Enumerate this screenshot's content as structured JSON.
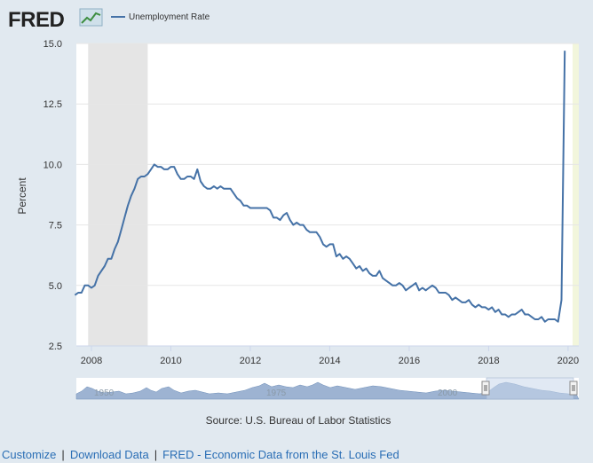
{
  "header": {
    "logo_text": "FRED",
    "legend_label": "Unemployment Rate"
  },
  "source_text": "Source: U.S. Bureau of Labor Statistics",
  "footer": {
    "links": [
      {
        "label": "Customize"
      },
      {
        "label": "Download Data"
      },
      {
        "label": "FRED - Economic Data from the St. Louis Fed"
      }
    ],
    "separator": "|"
  },
  "navigator": {
    "year_labels": [
      "1950",
      "1975",
      "2000"
    ]
  },
  "colors": {
    "series": "#4572a7",
    "recession": "#e5e5e5",
    "highlight": "#f2f6dc",
    "navigator_fill": "#9db3d2",
    "navigator_selection": "#c9d7eb"
  },
  "chart_data": {
    "type": "line",
    "title": "",
    "xlabel": "",
    "ylabel": "Percent",
    "ylim": [
      2.5,
      15.0
    ],
    "yticks": [
      "2.5",
      "5.0",
      "7.5",
      "10.0",
      "12.5",
      "15.0"
    ],
    "xticks": [
      "2008",
      "2010",
      "2012",
      "2014",
      "2016",
      "2018",
      "2020"
    ],
    "grid": true,
    "legend": "top-left",
    "start": "2007-08",
    "recession": {
      "from": "2007-12",
      "to": "2009-06"
    },
    "series": [
      {
        "name": "Unemployment Rate",
        "values": [
          4.6,
          4.7,
          4.7,
          5.0,
          5.0,
          4.9,
          5.0,
          5.4,
          5.6,
          5.8,
          6.1,
          6.1,
          6.5,
          6.8,
          7.3,
          7.8,
          8.3,
          8.7,
          9.0,
          9.4,
          9.5,
          9.5,
          9.6,
          9.8,
          10.0,
          9.9,
          9.9,
          9.8,
          9.8,
          9.9,
          9.9,
          9.6,
          9.4,
          9.4,
          9.5,
          9.5,
          9.4,
          9.8,
          9.3,
          9.1,
          9.0,
          9.0,
          9.1,
          9.0,
          9.1,
          9.0,
          9.0,
          9.0,
          8.8,
          8.6,
          8.5,
          8.3,
          8.3,
          8.2,
          8.2,
          8.2,
          8.2,
          8.2,
          8.2,
          8.1,
          7.8,
          7.8,
          7.7,
          7.9,
          8.0,
          7.7,
          7.5,
          7.6,
          7.5,
          7.5,
          7.3,
          7.2,
          7.2,
          7.2,
          7.0,
          6.7,
          6.6,
          6.7,
          6.7,
          6.2,
          6.3,
          6.1,
          6.2,
          6.1,
          5.9,
          5.7,
          5.8,
          5.6,
          5.7,
          5.5,
          5.4,
          5.4,
          5.6,
          5.3,
          5.2,
          5.1,
          5.0,
          5.0,
          5.1,
          5.0,
          4.8,
          4.9,
          5.0,
          5.1,
          4.8,
          4.9,
          4.8,
          4.9,
          5.0,
          4.9,
          4.7,
          4.7,
          4.7,
          4.6,
          4.4,
          4.5,
          4.4,
          4.3,
          4.3,
          4.4,
          4.2,
          4.1,
          4.2,
          4.1,
          4.1,
          4.0,
          4.1,
          3.9,
          4.0,
          3.8,
          3.8,
          3.7,
          3.8,
          3.8,
          3.9,
          4.0,
          3.8,
          3.8,
          3.7,
          3.6,
          3.6,
          3.7,
          3.5,
          3.6,
          3.6,
          3.6,
          3.5,
          4.4,
          14.7
        ]
      }
    ]
  }
}
